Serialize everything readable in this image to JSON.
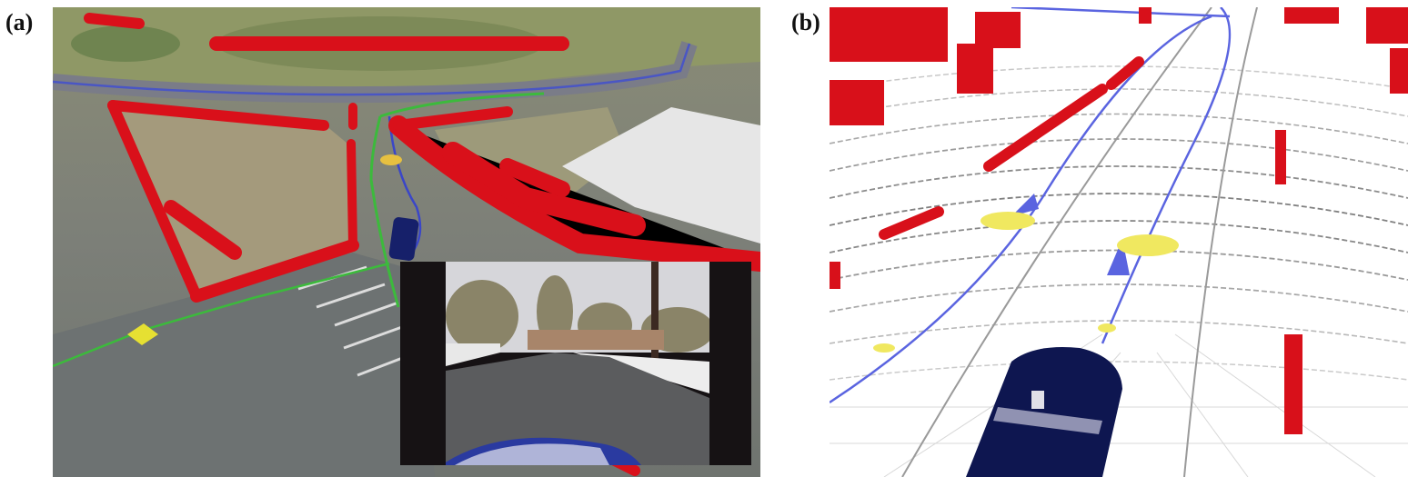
{
  "panels": {
    "a": {
      "label": "(a)"
    },
    "b": {
      "label": "(b)"
    }
  },
  "colors": {
    "obstacle": "#e0101a",
    "path_blue": "#3a46c8",
    "path_green": "#38b838",
    "marker_yellow": "#e8e040",
    "vehicle": "#111a55"
  }
}
